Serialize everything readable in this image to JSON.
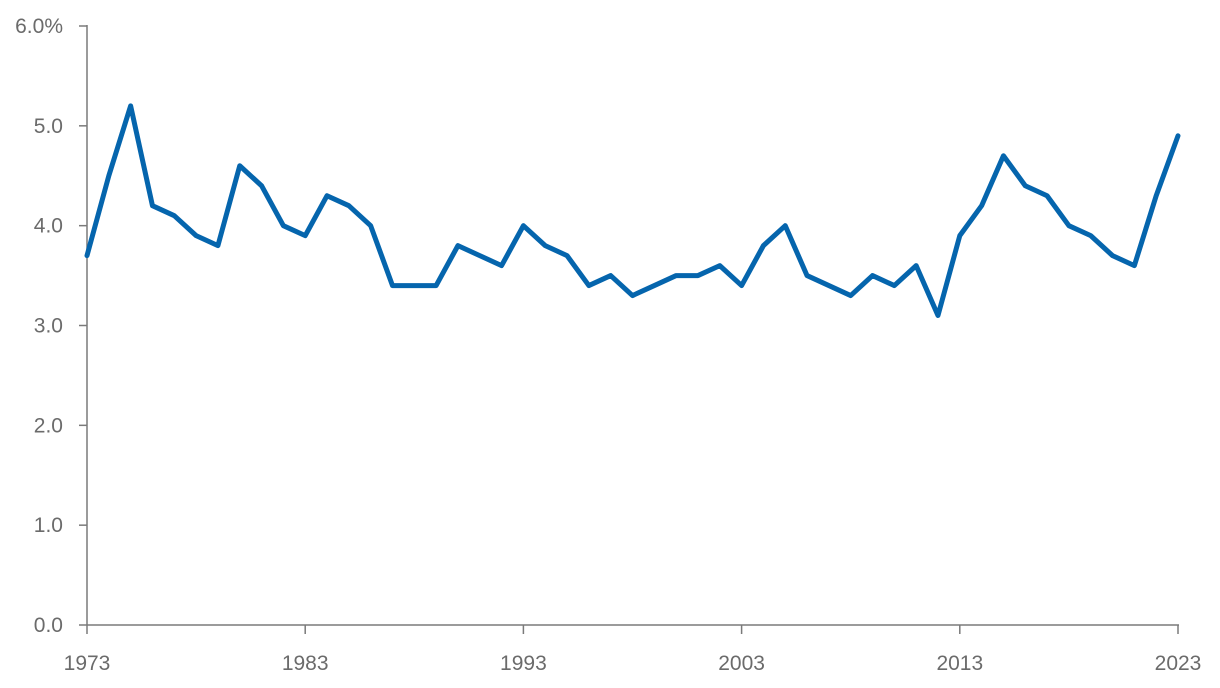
{
  "chart_data": {
    "type": "line",
    "title": "",
    "xlabel": "",
    "ylabel": "",
    "xlim": [
      1973,
      2023
    ],
    "ylim": [
      0,
      6
    ],
    "grid": false,
    "legend": "none",
    "y_ticks": [
      {
        "value": 0,
        "label": "0.0"
      },
      {
        "value": 1,
        "label": "1.0"
      },
      {
        "value": 2,
        "label": "2.0"
      },
      {
        "value": 3,
        "label": "3.0"
      },
      {
        "value": 4,
        "label": "4.0"
      },
      {
        "value": 5,
        "label": "5.0"
      },
      {
        "value": 6,
        "label": "6.0%"
      }
    ],
    "x_ticks": [
      {
        "value": 1973,
        "label": "1973"
      },
      {
        "value": 1983,
        "label": "1983"
      },
      {
        "value": 1993,
        "label": "1993"
      },
      {
        "value": 2003,
        "label": "2003"
      },
      {
        "value": 2013,
        "label": "2013"
      },
      {
        "value": 2023,
        "label": "2023"
      }
    ],
    "series": [
      {
        "color": "#0565ad",
        "x": [
          1973,
          1974,
          1975,
          1976,
          1977,
          1978,
          1979,
          1980,
          1981,
          1982,
          1983,
          1984,
          1985,
          1986,
          1987,
          1988,
          1989,
          1990,
          1991,
          1992,
          1993,
          1994,
          1995,
          1996,
          1997,
          1998,
          1999,
          2000,
          2001,
          2002,
          2003,
          2004,
          2005,
          2006,
          2007,
          2008,
          2009,
          2010,
          2011,
          2012,
          2013,
          2014,
          2015,
          2016,
          2017,
          2018,
          2019,
          2020,
          2021,
          2022,
          2023
        ],
        "values": [
          3.7,
          4.5,
          5.2,
          4.2,
          4.1,
          3.9,
          3.8,
          4.6,
          4.4,
          4.0,
          3.9,
          4.3,
          4.2,
          4.0,
          3.4,
          3.4,
          3.4,
          3.8,
          3.7,
          3.6,
          4.0,
          3.8,
          3.7,
          3.4,
          3.5,
          3.3,
          3.4,
          3.5,
          3.5,
          3.6,
          3.4,
          3.8,
          4.0,
          3.5,
          3.4,
          3.3,
          3.5,
          3.4,
          3.6,
          3.1,
          3.9,
          4.2,
          4.7,
          4.4,
          4.3,
          4.0,
          3.9,
          3.7,
          3.6,
          4.3,
          4.9
        ]
      }
    ]
  }
}
